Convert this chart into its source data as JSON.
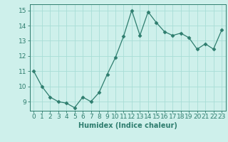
{
  "x": [
    0,
    1,
    2,
    3,
    4,
    5,
    6,
    7,
    8,
    9,
    10,
    11,
    12,
    13,
    14,
    15,
    16,
    17,
    18,
    19,
    20,
    21,
    22,
    23
  ],
  "y": [
    11.0,
    10.0,
    9.3,
    9.0,
    8.9,
    8.6,
    9.3,
    9.0,
    9.6,
    10.8,
    11.9,
    13.3,
    15.0,
    13.35,
    14.9,
    14.2,
    13.6,
    13.35,
    13.5,
    13.2,
    12.45,
    12.8,
    12.45,
    13.7
  ],
  "line_color": "#2e7d6e",
  "marker": "D",
  "marker_size": 2.5,
  "bg_color": "#cef0eb",
  "grid_color": "#a8ddd6",
  "xlabel": "Humidex (Indice chaleur)",
  "xlabel_fontsize": 7,
  "tick_fontsize": 6.5,
  "ylim": [
    8.4,
    15.4
  ],
  "xlim": [
    -0.5,
    23.5
  ],
  "yticks": [
    9,
    10,
    11,
    12,
    13,
    14,
    15
  ],
  "xticks": [
    0,
    1,
    2,
    3,
    4,
    5,
    6,
    7,
    8,
    9,
    10,
    11,
    12,
    13,
    14,
    15,
    16,
    17,
    18,
    19,
    20,
    21,
    22,
    23
  ]
}
